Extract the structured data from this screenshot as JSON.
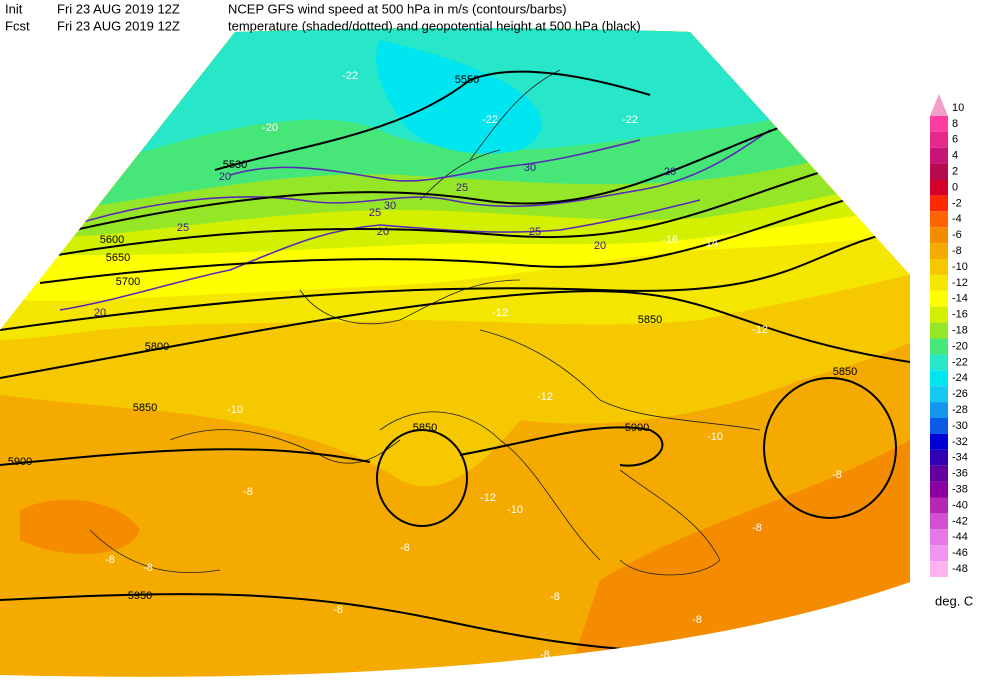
{
  "header": {
    "init_label": "Init",
    "init_time": "Fri 23 AUG 2019 12Z",
    "fcst_label": "Fcst",
    "fcst_time": "Fri 23 AUG 2019 12Z",
    "title": "NCEP GFS wind speed at 500 hPa in m/s (contours/barbs)",
    "subtitle": "temperature (shaded/dotted) and geopotential height at 500 hPa (black)"
  },
  "legend": {
    "unit": "deg. C",
    "levels": [
      {
        "value": 10,
        "color": "#f0a0c8"
      },
      {
        "value": 8,
        "color": "#ff3ca0"
      },
      {
        "value": 6,
        "color": "#e6288c"
      },
      {
        "value": 4,
        "color": "#c81478"
      },
      {
        "value": 2,
        "color": "#b40a50"
      },
      {
        "value": 0,
        "color": "#d2002a"
      },
      {
        "value": -2,
        "color": "#ff2800"
      },
      {
        "value": -4,
        "color": "#ff6400"
      },
      {
        "value": -6,
        "color": "#f58c00"
      },
      {
        "value": -8,
        "color": "#f5aa00"
      },
      {
        "value": -10,
        "color": "#f5c800"
      },
      {
        "value": -12,
        "color": "#f5e600"
      },
      {
        "value": -14,
        "color": "#ffff00"
      },
      {
        "value": -16,
        "color": "#d2f000"
      },
      {
        "value": -18,
        "color": "#96e628"
      },
      {
        "value": -20,
        "color": "#46e678"
      },
      {
        "value": -22,
        "color": "#28e6c8"
      },
      {
        "value": -24,
        "color": "#00e6f0"
      },
      {
        "value": -26,
        "color": "#14c8f0"
      },
      {
        "value": -28,
        "color": "#1496f0"
      },
      {
        "value": -30,
        "color": "#0a5ae6"
      },
      {
        "value": -32,
        "color": "#0000d2"
      },
      {
        "value": -34,
        "color": "#3200b4"
      },
      {
        "value": -36,
        "color": "#6400a0"
      },
      {
        "value": -38,
        "color": "#8c00a0"
      },
      {
        "value": -40,
        "color": "#b428b4"
      },
      {
        "value": -42,
        "color": "#d250d2"
      },
      {
        "value": -44,
        "color": "#e678e6"
      },
      {
        "value": -46,
        "color": "#f096f0"
      },
      {
        "value": -48,
        "color": "#ffb4f0"
      }
    ]
  },
  "map_labels": [
    "-22",
    "-22",
    "-22",
    "-20",
    "-16",
    "-14",
    "-12",
    "-12",
    "-12",
    "-12",
    "-10",
    "-10",
    "-10",
    "-8",
    "-8",
    "-8",
    "-8",
    "-8",
    "-8",
    "-8",
    "-8",
    "-8",
    "-8",
    "5550",
    "5530",
    "5600",
    "5650",
    "5700",
    "5800",
    "5850",
    "5850",
    "5850",
    "5900",
    "5900",
    "5950",
    "5850",
    "20",
    "20",
    "20",
    "25",
    "25",
    "25",
    "30",
    "30",
    "20",
    "20",
    "25"
  ]
}
